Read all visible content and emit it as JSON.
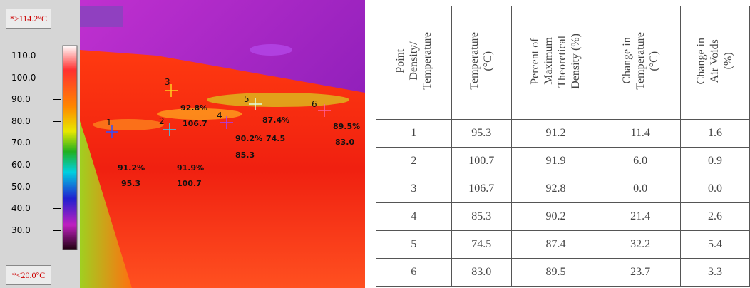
{
  "thermal_image": {
    "max_label": "*>114.2°C",
    "min_label": "*<20.0°C",
    "scale_ticks": [
      "110.0",
      "100.0",
      "90.0",
      "80.0",
      "70.0",
      "60.0",
      "50.0",
      "40.0",
      "30.0"
    ],
    "points": [
      {
        "id": "1",
        "density": "91.2%",
        "temperature": "95.3"
      },
      {
        "id": "2",
        "density": "91.9%",
        "temperature": "100.7"
      },
      {
        "id": "3",
        "density": "92.8%",
        "temperature": "106.7"
      },
      {
        "id": "4",
        "density": "90.2%",
        "temperature": "85.3"
      },
      {
        "id": "5",
        "density": "87.4%",
        "temperature": "74.5"
      },
      {
        "id": "6",
        "density": "89.5%",
        "temperature": "83.0"
      }
    ]
  },
  "table": {
    "headers": [
      [
        "Point",
        "Density/",
        "Temperature"
      ],
      [
        "Temperature",
        "(°C)"
      ],
      [
        "Percent of",
        "Maximum",
        "Theoretical",
        "Density (%)"
      ],
      [
        "Change in",
        "Temperature",
        "(°C)"
      ],
      [
        "Change in",
        "Air Voids",
        "(%)"
      ]
    ],
    "rows": [
      [
        "1",
        "95.3",
        "91.2",
        "11.4",
        "1.6"
      ],
      [
        "2",
        "100.7",
        "91.9",
        "6.0",
        "0.9"
      ],
      [
        "3",
        "106.7",
        "92.8",
        "0.0",
        "0.0"
      ],
      [
        "4",
        "85.3",
        "90.2",
        "21.4",
        "2.6"
      ],
      [
        "5",
        "74.5",
        "87.4",
        "32.2",
        "5.4"
      ],
      [
        "6",
        "83.0",
        "89.5",
        "23.7",
        "3.3"
      ]
    ]
  }
}
